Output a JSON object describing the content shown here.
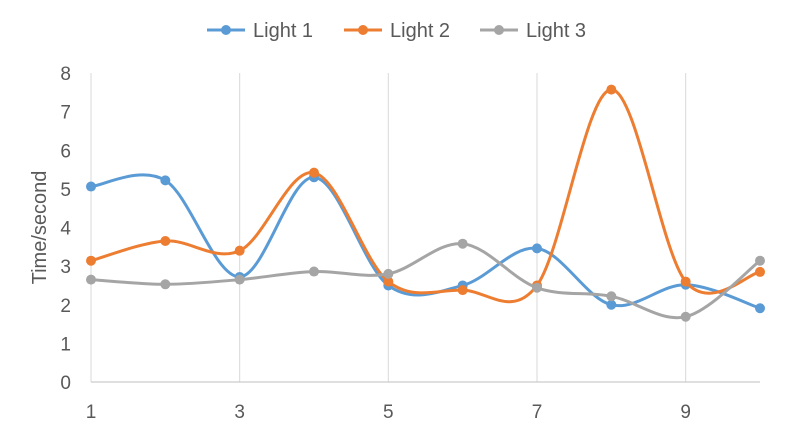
{
  "chart_data": {
    "type": "line",
    "smooth": true,
    "title": "",
    "xlabel": "",
    "ylabel": "Time/second",
    "xlim": [
      1,
      10
    ],
    "ylim": [
      0,
      8
    ],
    "x_ticks": [
      1,
      3,
      5,
      7,
      9
    ],
    "y_ticks": [
      0,
      1,
      2,
      3,
      4,
      5,
      6,
      7,
      8
    ],
    "grid": "vertical",
    "legend_position": "top",
    "x": [
      1,
      2,
      3,
      4,
      5,
      6,
      7,
      8,
      9,
      10
    ],
    "series": [
      {
        "name": "Light 1",
        "color": "#5b9bd5",
        "values": [
          5.06,
          5.22,
          2.72,
          5.3,
          2.5,
          2.5,
          3.46,
          2.0,
          2.52,
          1.91
        ]
      },
      {
        "name": "Light 2",
        "color": "#ed7d31",
        "values": [
          3.14,
          3.65,
          3.4,
          5.42,
          2.6,
          2.38,
          2.5,
          7.57,
          2.6,
          2.85
        ]
      },
      {
        "name": "Light 3",
        "color": "#a5a5a5",
        "values": [
          2.65,
          2.53,
          2.65,
          2.86,
          2.8,
          3.58,
          2.44,
          2.22,
          1.69,
          3.14
        ]
      }
    ]
  }
}
